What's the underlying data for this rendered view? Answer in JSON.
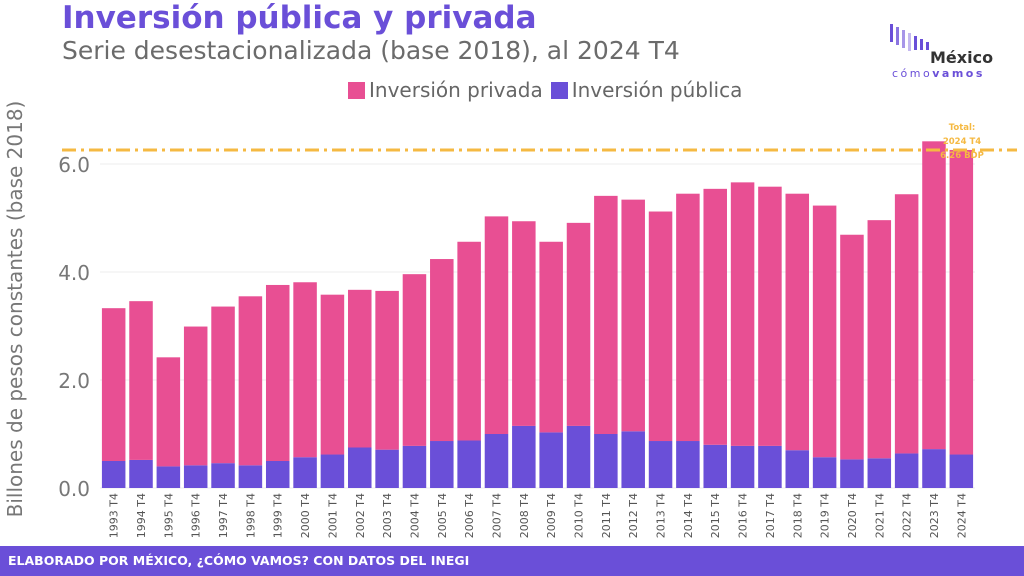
{
  "header": {
    "title": "Inversión pública y privada",
    "subtitle": "Serie desestacionalizada (base 2018), al 2024 T4"
  },
  "logo": {
    "word": "México",
    "sub_a": "cómo",
    "sub_b": "vamos"
  },
  "footer": {
    "text": "ELABORADO POR MÉXICO, ¿CÓMO VAMOS? CON DATOS DEL INEGI"
  },
  "colors": {
    "privada": "#e84f93",
    "publica": "#6a4fd8",
    "total_line": "#f5b942",
    "accent": "#6a4fd8"
  },
  "chart_data": {
    "type": "bar",
    "stacked": true,
    "title": "Inversión pública y privada",
    "subtitle": "Serie desestacionalizada (base 2018), al 2024 T4",
    "xlabel": "",
    "ylabel": "Billones de pesos constantes (base 2018)",
    "ylim": [
      0,
      7
    ],
    "yticks": [
      "0.0",
      "2.0",
      "4.0",
      "6.0"
    ],
    "grid": true,
    "legend_position": "top",
    "categories": [
      "1993 T4",
      "1994 T4",
      "1995 T4",
      "1996 T4",
      "1997 T4",
      "1998 T4",
      "1999 T4",
      "2000 T4",
      "2001 T4",
      "2002 T4",
      "2003 T4",
      "2004 T4",
      "2005 T4",
      "2006 T4",
      "2007 T4",
      "2008 T4",
      "2009 T4",
      "2010 T4",
      "2011 T4",
      "2012 T4",
      "2013 T4",
      "2014 T4",
      "2015 T4",
      "2016 T4",
      "2017 T4",
      "2018 T4",
      "2019 T4",
      "2020 T4",
      "2021 T4",
      "2022 T4",
      "2023 T4",
      "2024 T4"
    ],
    "series": [
      {
        "name": "Inversión pública",
        "values": [
          0.5,
          0.52,
          0.4,
          0.42,
          0.46,
          0.42,
          0.5,
          0.57,
          0.62,
          0.75,
          0.71,
          0.78,
          0.87,
          0.88,
          1.0,
          1.15,
          1.03,
          1.15,
          1.0,
          1.05,
          0.87,
          0.87,
          0.8,
          0.78,
          0.78,
          0.7,
          0.57,
          0.53,
          0.55,
          0.64,
          0.72,
          0.62
        ]
      },
      {
        "name": "Inversión privada",
        "values": [
          2.83,
          2.94,
          2.02,
          2.57,
          2.9,
          3.13,
          3.26,
          3.24,
          2.96,
          2.92,
          2.94,
          3.18,
          3.37,
          3.68,
          4.03,
          3.79,
          3.53,
          3.76,
          4.41,
          4.29,
          4.25,
          4.58,
          4.74,
          4.88,
          4.8,
          4.75,
          4.66,
          4.16,
          4.41,
          4.8,
          5.7,
          5.64
        ]
      }
    ],
    "reference_line": {
      "value": 6.26,
      "label_lines": [
        "Total:",
        "2024 T4",
        "6.26 BDP"
      ]
    }
  }
}
